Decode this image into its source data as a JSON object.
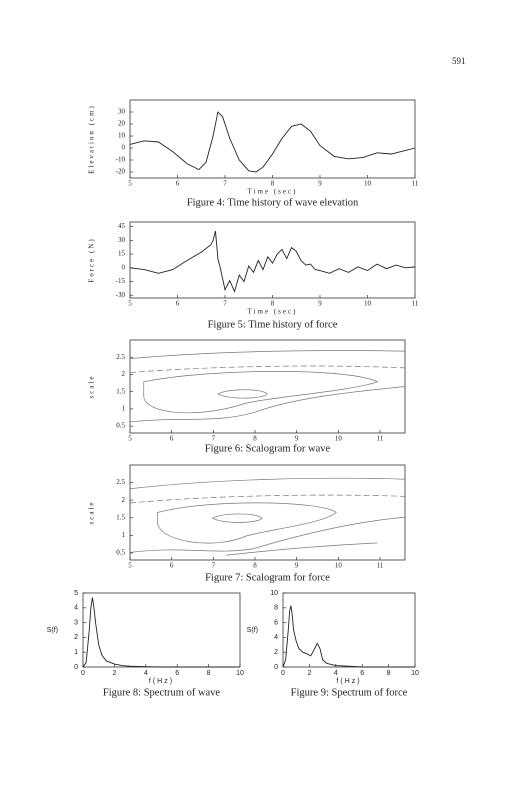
{
  "page_number": "591",
  "chart_data": [
    {
      "type": "line",
      "caption": "Figure 4: Time history of wave elevation",
      "x_label": "Time (sec)",
      "y_label": "Elevation (cm)",
      "x": [
        5,
        5.3,
        5.6,
        5.9,
        6.2,
        6.45,
        6.6,
        6.75,
        6.85,
        6.95,
        7.1,
        7.3,
        7.5,
        7.65,
        7.8,
        8.0,
        8.2,
        8.4,
        8.6,
        8.8,
        9.0,
        9.3,
        9.6,
        9.9,
        10.2,
        10.5,
        10.8,
        11
      ],
      "values": [
        3,
        6,
        5,
        -3,
        -13,
        -18,
        -12,
        10,
        30,
        26,
        8,
        -10,
        -19,
        -20,
        -16,
        -5,
        8,
        18,
        20,
        14,
        2,
        -7,
        -9,
        -8,
        -4,
        -5,
        -2,
        0
      ],
      "color": "#222222",
      "xlim": [
        5,
        11
      ],
      "ylim": [
        -25,
        40
      ],
      "xticks": [
        5,
        6,
        7,
        8,
        9,
        10,
        11
      ],
      "yticks": [
        30,
        20,
        10,
        0,
        -10,
        -20
      ]
    },
    {
      "type": "line",
      "caption": "Figure 5: Time history of force",
      "x_label": "Time (sec)",
      "y_label": "Force (N)",
      "x": [
        5,
        5.3,
        5.6,
        5.9,
        6.2,
        6.5,
        6.7,
        6.75,
        6.8,
        6.85,
        6.9,
        7.0,
        7.1,
        7.2,
        7.3,
        7.4,
        7.5,
        7.6,
        7.7,
        7.8,
        7.9,
        8.0,
        8.1,
        8.2,
        8.3,
        8.4,
        8.5,
        8.6,
        8.7,
        8.8,
        8.9,
        9.0,
        9.2,
        9.4,
        9.6,
        9.8,
        10.0,
        10.2,
        10.4,
        10.6,
        10.8,
        11
      ],
      "values": [
        0,
        -2,
        -6,
        -2,
        8,
        17,
        25,
        30,
        40,
        10,
        0,
        -24,
        -14,
        -26,
        -8,
        -15,
        2,
        -5,
        8,
        -2,
        12,
        5,
        15,
        20,
        10,
        22,
        18,
        8,
        3,
        4,
        -2,
        -3,
        -6,
        -1,
        -5,
        1,
        -3,
        4,
        -1,
        3,
        0,
        1
      ],
      "color": "#222222",
      "xlim": [
        5,
        11
      ],
      "ylim": [
        -33,
        50
      ],
      "xticks": [
        5,
        6,
        7,
        8,
        9,
        10,
        11
      ],
      "yticks": [
        45,
        30,
        15,
        0,
        -15,
        -30
      ]
    },
    {
      "type": "contour",
      "caption": "Figure 6: Scalogram for wave",
      "y_label": "scale",
      "xlim": [
        5,
        11.6
      ],
      "ylim": [
        0.3,
        3
      ],
      "xticks": [
        5,
        6,
        7,
        8,
        9,
        10,
        11
      ],
      "yticks": [
        2.5,
        2,
        1.5,
        1,
        0.5
      ]
    },
    {
      "type": "contour",
      "caption": "Figure 7: Scalogram for force",
      "y_label": "scale",
      "xlim": [
        5,
        11.6
      ],
      "ylim": [
        0.3,
        3
      ],
      "xticks": [
        5,
        6,
        7,
        8,
        9,
        10,
        11
      ],
      "yticks": [
        2.5,
        2,
        1.5,
        1,
        0.5
      ]
    },
    {
      "type": "line",
      "caption": "Figure 8: Spectrum of wave",
      "x_label": "f(Hz)",
      "y_label": "S(f)",
      "x": [
        0,
        0.2,
        0.4,
        0.5,
        0.6,
        0.7,
        0.8,
        1.0,
        1.2,
        1.5,
        2,
        2.5,
        3,
        4,
        5,
        6,
        8,
        10
      ],
      "values": [
        0,
        0.3,
        2.5,
        4,
        4.7,
        4,
        3,
        1.5,
        0.8,
        0.4,
        0.2,
        0.1,
        0.05,
        0.02,
        0,
        0,
        0,
        0
      ],
      "color": "#222222",
      "xlim": [
        0,
        10
      ],
      "ylim": [
        0,
        5
      ],
      "xticks": [
        0,
        2,
        4,
        6,
        8,
        10
      ],
      "yticks": [
        0,
        1,
        2,
        3,
        4,
        5
      ]
    },
    {
      "type": "line",
      "caption": "Figure 9: Spectrum of force",
      "x_label": "f(Hz)",
      "y_label": "S(f)",
      "x": [
        0,
        0.2,
        0.4,
        0.5,
        0.6,
        0.7,
        0.8,
        1.0,
        1.2,
        1.5,
        1.8,
        2.1,
        2.4,
        2.6,
        2.8,
        3.0,
        3.3,
        4,
        5,
        6,
        8,
        10
      ],
      "values": [
        0,
        1,
        5,
        7.5,
        8.3,
        7,
        5,
        3.5,
        2.5,
        2,
        1.8,
        1.5,
        2.5,
        3.2,
        2.5,
        1,
        0.5,
        0.2,
        0.1,
        0,
        0,
        0
      ],
      "color": "#222222",
      "xlim": [
        0,
        10
      ],
      "ylim": [
        0,
        10
      ],
      "xticks": [
        0,
        2,
        4,
        6,
        8,
        10
      ],
      "yticks": [
        0,
        2,
        4,
        6,
        8,
        10
      ]
    }
  ]
}
